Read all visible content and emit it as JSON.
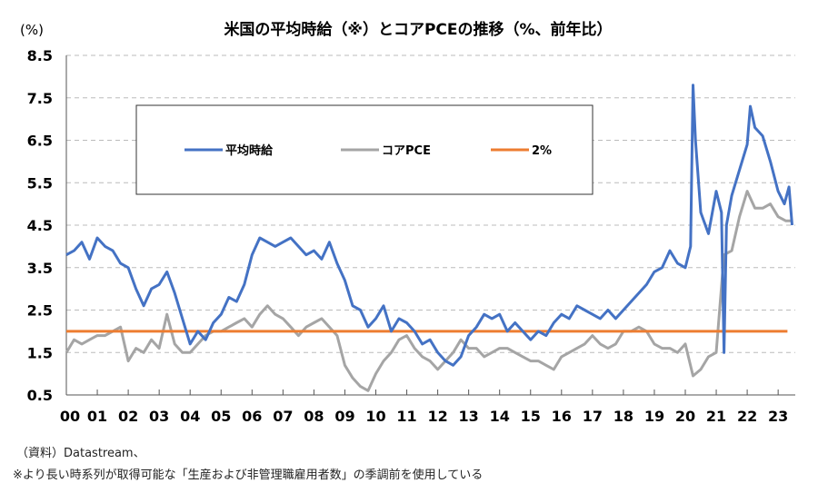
{
  "chart_data": {
    "type": "line",
    "title": "米国の平均時給（※）とコアPCEの推移（%、前年比）",
    "unit_label": "(%)",
    "xlabel": "",
    "ylabel": "(%)",
    "ylim": [
      0.5,
      8.5
    ],
    "yticks": [
      "8.5",
      "7.5",
      "6.5",
      "5.5",
      "4.5",
      "3.5",
      "2.5",
      "1.5",
      "0.5"
    ],
    "ytick_values": [
      8.5,
      7.5,
      6.5,
      5.5,
      4.5,
      3.5,
      2.5,
      1.5,
      0.5
    ],
    "xticks": [
      "00",
      "01",
      "02",
      "03",
      "04",
      "05",
      "06",
      "07",
      "08",
      "09",
      "10",
      "11",
      "12",
      "13",
      "14",
      "15",
      "16",
      "17",
      "18",
      "19",
      "20",
      "21",
      "22",
      "23"
    ],
    "xlim": [
      2000,
      2023.5
    ],
    "grid": "horizontal-dashed",
    "legend_position": "top-left-inside",
    "series": [
      {
        "name": "平均時給",
        "color": "#4472C4",
        "x": [
          2000,
          2000.25,
          2000.5,
          2000.75,
          2001,
          2001.25,
          2001.5,
          2001.75,
          2002,
          2002.25,
          2002.5,
          2002.75,
          2003,
          2003.25,
          2003.5,
          2003.75,
          2004,
          2004.25,
          2004.5,
          2004.75,
          2005,
          2005.25,
          2005.5,
          2005.75,
          2006,
          2006.25,
          2006.5,
          2006.75,
          2007,
          2007.25,
          2007.5,
          2007.75,
          2008,
          2008.25,
          2008.5,
          2008.75,
          2009,
          2009.25,
          2009.5,
          2009.75,
          2010,
          2010.25,
          2010.5,
          2010.75,
          2011,
          2011.25,
          2011.5,
          2011.75,
          2012,
          2012.25,
          2012.5,
          2012.75,
          2013,
          2013.25,
          2013.5,
          2013.75,
          2014,
          2014.25,
          2014.5,
          2014.75,
          2015,
          2015.25,
          2015.5,
          2015.75,
          2016,
          2016.25,
          2016.5,
          2016.75,
          2017,
          2017.25,
          2017.5,
          2017.75,
          2018,
          2018.25,
          2018.5,
          2018.75,
          2019,
          2019.25,
          2019.5,
          2019.75,
          2020,
          2020.17,
          2020.25,
          2020.33,
          2020.5,
          2020.75,
          2021,
          2021.17,
          2021.25,
          2021.33,
          2021.5,
          2021.75,
          2022,
          2022.1,
          2022.25,
          2022.5,
          2022.75,
          2023,
          2023.2,
          2023.35,
          2023.45
        ],
        "values": [
          3.8,
          3.9,
          4.1,
          3.7,
          4.2,
          4.0,
          3.9,
          3.6,
          3.5,
          3.0,
          2.6,
          3.0,
          3.1,
          3.4,
          2.9,
          2.3,
          1.7,
          2.0,
          1.8,
          2.2,
          2.4,
          2.8,
          2.7,
          3.1,
          3.8,
          4.2,
          4.1,
          4.0,
          4.1,
          4.2,
          4.0,
          3.8,
          3.9,
          3.7,
          4.1,
          3.6,
          3.2,
          2.6,
          2.5,
          2.1,
          2.3,
          2.6,
          2.0,
          2.3,
          2.2,
          2.0,
          1.7,
          1.8,
          1.5,
          1.3,
          1.2,
          1.4,
          1.9,
          2.1,
          2.4,
          2.3,
          2.4,
          2.0,
          2.2,
          2.0,
          1.8,
          2.0,
          1.9,
          2.2,
          2.4,
          2.3,
          2.6,
          2.5,
          2.4,
          2.3,
          2.5,
          2.3,
          2.5,
          2.7,
          2.9,
          3.1,
          3.4,
          3.5,
          3.9,
          3.6,
          3.5,
          4.0,
          7.8,
          6.5,
          4.8,
          4.3,
          5.3,
          4.8,
          1.5,
          4.5,
          5.2,
          5.8,
          6.4,
          7.3,
          6.8,
          6.6,
          6.0,
          5.3,
          5.0,
          5.4,
          4.5
        ]
      },
      {
        "name": "コアPCE",
        "color": "#A5A5A5",
        "x": [
          2000,
          2000.25,
          2000.5,
          2000.75,
          2001,
          2001.25,
          2001.5,
          2001.75,
          2002,
          2002.25,
          2002.5,
          2002.75,
          2003,
          2003.25,
          2003.5,
          2003.75,
          2004,
          2004.25,
          2004.5,
          2004.75,
          2005,
          2005.25,
          2005.5,
          2005.75,
          2006,
          2006.25,
          2006.5,
          2006.75,
          2007,
          2007.25,
          2007.5,
          2007.75,
          2008,
          2008.25,
          2008.5,
          2008.75,
          2009,
          2009.25,
          2009.5,
          2009.75,
          2010,
          2010.25,
          2010.5,
          2010.75,
          2011,
          2011.25,
          2011.5,
          2011.75,
          2012,
          2012.25,
          2012.5,
          2012.75,
          2013,
          2013.25,
          2013.5,
          2013.75,
          2014,
          2014.25,
          2014.5,
          2014.75,
          2015,
          2015.25,
          2015.5,
          2015.75,
          2016,
          2016.25,
          2016.5,
          2016.75,
          2017,
          2017.25,
          2017.5,
          2017.75,
          2018,
          2018.25,
          2018.5,
          2018.75,
          2019,
          2019.25,
          2019.5,
          2019.75,
          2020,
          2020.25,
          2020.5,
          2020.75,
          2021,
          2021.25,
          2021.5,
          2021.75,
          2022,
          2022.25,
          2022.5,
          2022.75,
          2023,
          2023.25,
          2023.45
        ],
        "values": [
          1.5,
          1.8,
          1.7,
          1.8,
          1.9,
          1.9,
          2.0,
          2.1,
          1.3,
          1.6,
          1.5,
          1.8,
          1.6,
          2.4,
          1.7,
          1.5,
          1.5,
          1.7,
          1.9,
          2.0,
          2.0,
          2.1,
          2.2,
          2.3,
          2.1,
          2.4,
          2.6,
          2.4,
          2.3,
          2.1,
          1.9,
          2.1,
          2.2,
          2.3,
          2.1,
          1.9,
          1.2,
          0.9,
          0.7,
          0.6,
          1.0,
          1.3,
          1.5,
          1.8,
          1.9,
          1.6,
          1.4,
          1.3,
          1.1,
          1.3,
          1.5,
          1.8,
          1.6,
          1.6,
          1.4,
          1.5,
          1.6,
          1.6,
          1.5,
          1.4,
          1.3,
          1.3,
          1.2,
          1.1,
          1.4,
          1.5,
          1.6,
          1.7,
          1.9,
          1.7,
          1.6,
          1.7,
          2.0,
          2.0,
          2.1,
          2.0,
          1.7,
          1.6,
          1.6,
          1.5,
          1.7,
          0.95,
          1.1,
          1.4,
          1.5,
          3.8,
          3.9,
          4.7,
          5.3,
          4.9,
          4.9,
          5.0,
          4.7,
          4.6,
          4.6
        ]
      },
      {
        "name": "2%",
        "color": "#ED7D31",
        "x": [
          2000,
          2023.3
        ],
        "values": [
          2.0,
          2.0
        ]
      }
    ]
  },
  "footnotes": {
    "source": "（資料）Datastream、",
    "note": "※より長い時系列が取得可能な「生産および非管理職雇用者数」の季調前を使用している"
  }
}
